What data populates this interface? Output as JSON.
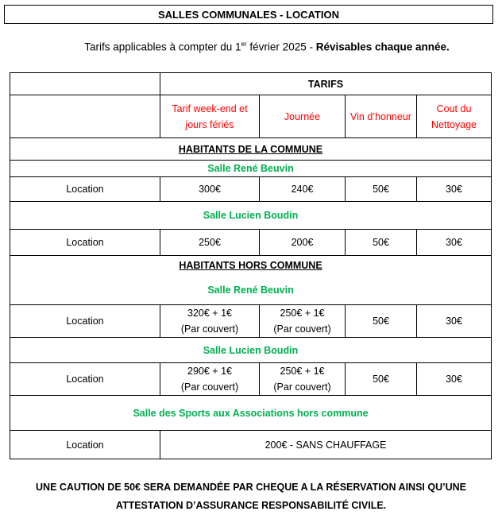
{
  "title": "SALLES COMMUNALES - LOCATION",
  "subtitle": {
    "prefix": "Tarifs applicables à compter du 1",
    "sup": "er",
    "middle": " février 2025 - ",
    "bold": "Révisables chaque année."
  },
  "table": {
    "tarifs_header": "TARIFS",
    "columns": [
      "Tarif week-end et jours fériés",
      "Journée",
      "Vin d’honneur",
      "Cout du Nettoyage"
    ],
    "sections": [
      {
        "title": "HABITANTS DE LA COMMUNE",
        "halls": [
          {
            "name": "Salle René Beuvin",
            "row": {
              "label": "Location",
              "values": [
                "300€",
                "240€",
                "50€",
                "30€"
              ]
            }
          },
          {
            "name": "Salle Lucien Boudin",
            "row": {
              "label": "Location",
              "values": [
                "250€",
                "200€",
                "50€",
                "30€"
              ]
            }
          }
        ]
      },
      {
        "title": "HABITANTS HORS COMMUNE",
        "halls": [
          {
            "name": "Salle René Beuvin",
            "row": {
              "label": "Location",
              "values": [
                "320€ + 1€",
                "250€ + 1€",
                "50€",
                "30€"
              ],
              "notes": [
                "(Par couvert)",
                "(Par couvert)"
              ]
            }
          },
          {
            "name": "Salle Lucien Boudin",
            "row": {
              "label": "Location",
              "values": [
                "290€ + 1€",
                "250€ + 1€",
                "50€",
                "30€"
              ],
              "notes": [
                "(Par couvert)",
                "(Par couvert)"
              ]
            }
          }
        ]
      }
    ],
    "sports": {
      "name": "Salle des Sports aux Associations hors commune",
      "row": {
        "label": "Location",
        "value": "200€ - SANS CHAUFFAGE"
      }
    }
  },
  "footer": [
    "UNE CAUTION DE 50€ SERA DEMANDÉE PAR CHEQUE A LA RÉSERVATION AINSI QU’UNE",
    "ATTESTATION D’ASSURANCE RESPONSABILITÉ CIVILE."
  ],
  "colors": {
    "column_headers": "#ff0000",
    "hall_names": "#00b050"
  }
}
